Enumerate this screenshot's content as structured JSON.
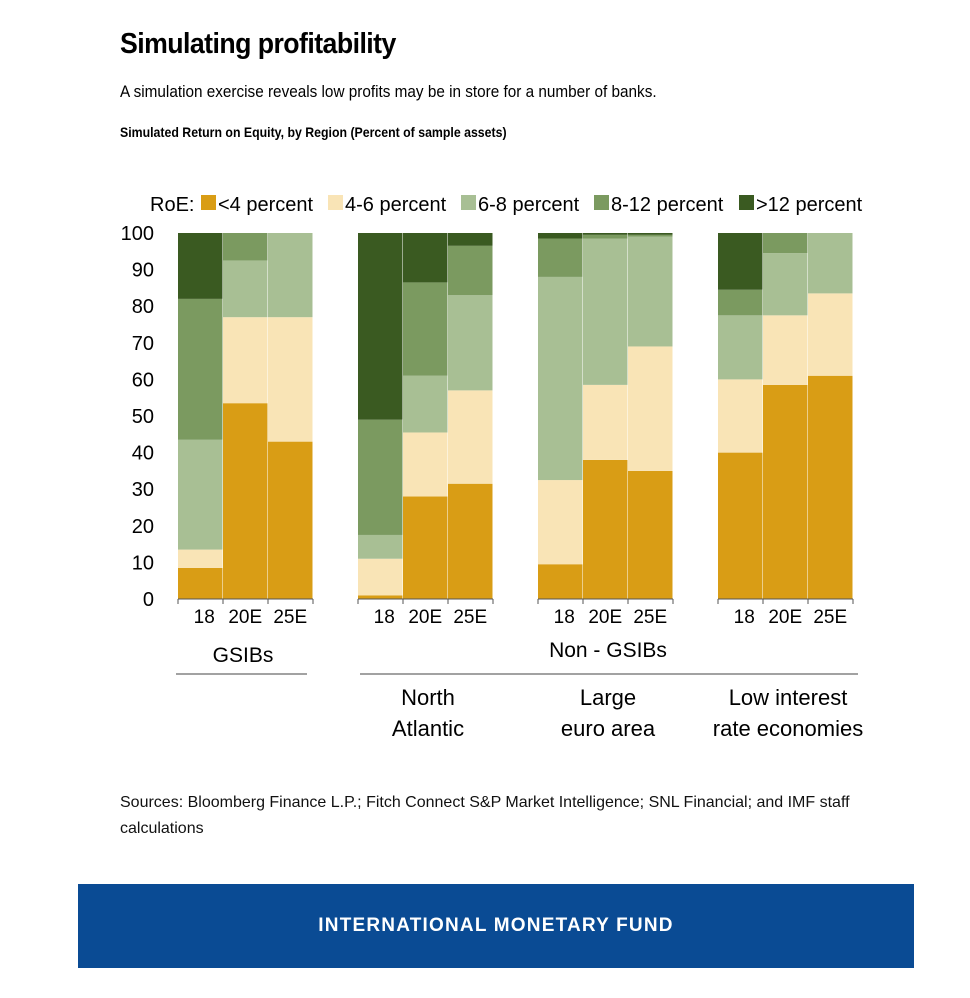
{
  "header": {
    "title": "Simulating profitability",
    "subtitle": "A simulation exercise reveals low profits may be in store for a number of banks.",
    "chart_title": "Simulated Return on Equity, by Region (Percent of sample assets)"
  },
  "legend": {
    "prefix": "RoE:",
    "items": [
      "<4 percent",
      "4-6 percent",
      "6-8 percent",
      "8-12 percent",
      ">12 percent"
    ]
  },
  "group_labels": {
    "gsibs": "GSIBs",
    "non_gsibs": "Non - GSIBs",
    "regions": [
      {
        "line1": "North",
        "line2": "Atlantic"
      },
      {
        "line1": "Large",
        "line2": "euro area"
      },
      {
        "line1": "Low interest",
        "line2": "rate economies"
      }
    ]
  },
  "sources": "Sources: Bloomberg Finance L.P.; Fitch Connect S&P Market Intelligence; SNL Financial; and IMF staff calculations",
  "footer": {
    "label": "INTERNATIONAL MONETARY FUND"
  },
  "colors": {
    "lt4": "#d99d15",
    "r4_6": "#f9e4b6",
    "r6_8": "#a8bf94",
    "r8_12": "#7b9a60",
    "gt12": "#3a5a21",
    "footer_bg": "#0a4b94"
  },
  "chart_data": {
    "type": "bar",
    "stacked": true,
    "ylim": [
      0,
      100
    ],
    "yticks": [
      0,
      10,
      20,
      30,
      40,
      50,
      60,
      70,
      80,
      90,
      100
    ],
    "groups": [
      {
        "name": "GSIBs",
        "categories": [
          "18",
          "20E",
          "25E"
        ]
      },
      {
        "name": "North Atlantic",
        "categories": [
          "18",
          "20E",
          "25E"
        ]
      },
      {
        "name": "Large euro area",
        "categories": [
          "18",
          "20E",
          "25E"
        ]
      },
      {
        "name": "Low interest rate economies",
        "categories": [
          "18",
          "20E",
          "25E"
        ]
      }
    ],
    "series": [
      {
        "name": "<4 percent",
        "values": [
          8.5,
          53.5,
          43,
          1,
          28,
          31.5,
          9.5,
          38,
          35,
          40,
          58.5,
          61
        ]
      },
      {
        "name": "4-6 percent",
        "values": [
          5,
          23.5,
          34,
          10,
          17.5,
          25.5,
          23,
          20.5,
          34,
          20,
          19,
          22.5
        ]
      },
      {
        "name": "6-8 percent",
        "values": [
          30,
          15.5,
          23,
          6.5,
          15.5,
          26,
          55.5,
          40,
          30,
          17.5,
          17,
          16.5
        ]
      },
      {
        "name": "8-12 percent",
        "values": [
          38.5,
          7.5,
          0,
          31.5,
          25.5,
          13.5,
          10.5,
          1,
          0.5,
          7,
          5.5,
          0
        ]
      },
      {
        "name": ">12 percent",
        "values": [
          18,
          0,
          0,
          51,
          13.5,
          3.5,
          1.5,
          0.5,
          0.5,
          15.5,
          0,
          0
        ]
      }
    ]
  }
}
